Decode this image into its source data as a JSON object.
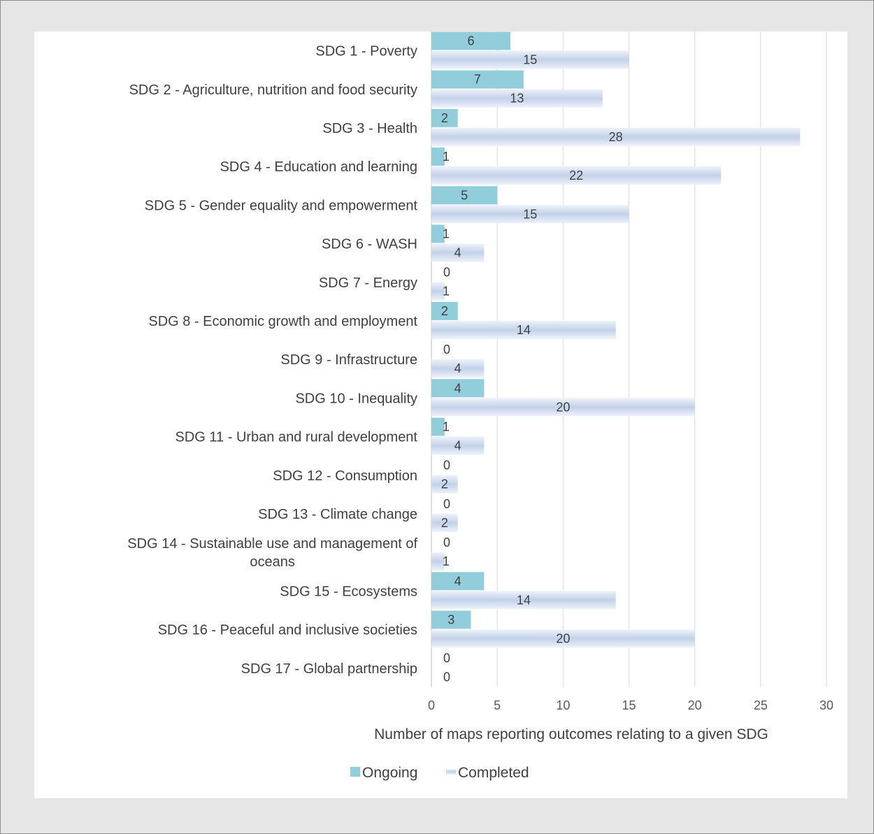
{
  "colors": {
    "ongoing": "#92cddc",
    "completed_light": "#eef2fa",
    "completed_mid": "#c2d1e9",
    "gridline": "#d9d9d9",
    "background": "#e6e6e6",
    "panel": "#ffffff"
  },
  "chart_data": {
    "type": "bar",
    "orientation": "horizontal",
    "title": "",
    "xlabel": "Number of maps reporting outcomes relating to a given SDG",
    "ylabel": "",
    "xlim": [
      0,
      30
    ],
    "x_ticks": [
      0,
      5,
      10,
      15,
      20,
      25,
      30
    ],
    "grid": true,
    "legend_position": "bottom",
    "categories": [
      "SDG 1 - Poverty",
      "SDG 2 - Agriculture, nutrition and food security",
      "SDG 3 - Health",
      "SDG 4 - Education and learning",
      "SDG 5 - Gender equality and empowerment",
      "SDG 6 - WASH",
      "SDG 7 - Energy",
      "SDG 8 - Economic growth and employment",
      "SDG 9 - Infrastructure",
      "SDG 10 - Inequality",
      "SDG 11 - Urban and rural development",
      "SDG 12 - Consumption",
      "SDG 13 - Climate change",
      "SDG 14 - Sustainable use and management of oceans",
      "SDG 15 - Ecosystems",
      "SDG 16 - Peaceful and inclusive societies",
      "SDG 17 - Global partnership"
    ],
    "series": [
      {
        "name": "Ongoing",
        "values": [
          6,
          7,
          2,
          1,
          5,
          1,
          0,
          2,
          0,
          4,
          1,
          0,
          0,
          0,
          4,
          3,
          0
        ]
      },
      {
        "name": "Completed",
        "values": [
          15,
          13,
          28,
          22,
          15,
          4,
          1,
          14,
          4,
          20,
          4,
          2,
          2,
          1,
          14,
          20,
          0
        ]
      }
    ]
  }
}
